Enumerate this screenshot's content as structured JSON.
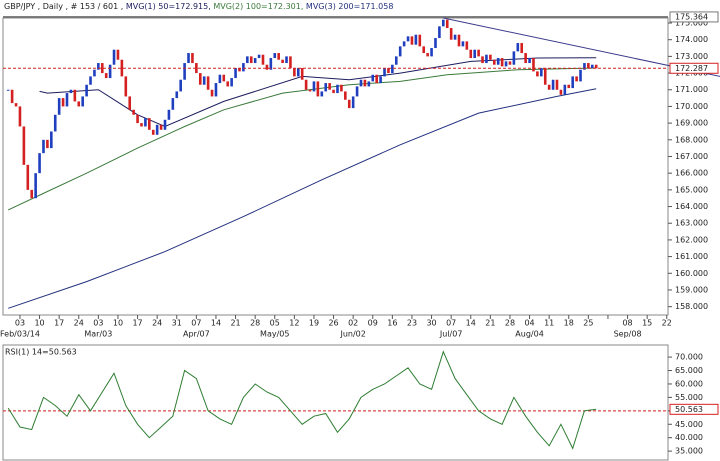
{
  "chart_data": [
    {
      "type": "candlestick",
      "title_parts": [
        "GBP/JPY , Daily , # 153 / 601 ,"
      ],
      "high": 175.364,
      "closes": [
        171.0,
        170.2,
        170.0,
        168.8,
        166.5,
        165.0,
        164.5,
        166.0,
        167.2,
        168.0,
        167.5,
        168.5,
        169.5,
        170.5,
        170.0,
        170.8,
        171.0,
        170.3,
        170.0,
        170.6,
        171.3,
        171.8,
        172.2,
        172.6,
        172.0,
        171.7,
        172.5,
        173.4,
        172.8,
        171.8,
        170.6,
        169.8,
        169.5,
        169.0,
        168.8,
        169.3,
        168.6,
        168.3,
        168.9,
        168.6,
        169.2,
        169.8,
        170.5,
        170.9,
        171.6,
        172.6,
        173.2,
        172.6,
        172.0,
        171.3,
        171.8,
        171.0,
        170.6,
        171.4,
        171.9,
        171.5,
        171.2,
        171.7,
        172.3,
        172.1,
        172.6,
        173.0,
        172.6,
        172.9,
        173.1,
        172.5,
        172.2,
        172.9,
        173.2,
        172.8,
        172.6,
        173.0,
        172.3,
        171.8,
        172.3,
        171.6,
        171.0,
        170.9,
        171.5,
        170.6,
        170.9,
        171.4,
        171.0,
        170.8,
        171.3,
        170.9,
        170.4,
        169.9,
        170.6,
        171.2,
        171.6,
        171.2,
        171.5,
        171.9,
        171.4,
        171.8,
        172.3,
        172.0,
        172.5,
        173.0,
        173.6,
        173.9,
        174.2,
        173.7,
        174.3,
        173.6,
        173.2,
        173.0,
        173.5,
        174.1,
        174.8,
        175.2,
        174.7,
        174.0,
        174.3,
        173.6,
        173.9,
        173.4,
        172.9,
        173.4,
        173.0,
        172.6,
        173.1,
        172.8,
        172.5,
        172.9,
        172.4,
        172.7,
        172.5,
        173.3,
        173.8,
        173.2,
        172.6,
        172.9,
        172.1,
        171.8,
        172.3,
        171.3,
        171.0,
        171.6,
        171.0,
        170.7,
        171.3,
        171.1,
        171.8,
        171.5,
        172.2,
        172.6,
        172.3,
        172.5,
        172.287
      ],
      "up_color": "#1f3fbf",
      "down_color": "#d42020",
      "series": [
        {
          "name": "MVG(1) 50=172.915,",
          "color": "#1c1c5e",
          "x": [
            8,
            10,
            23,
            33,
            40,
            55,
            75,
            87,
            100,
            118,
            135,
            150
          ],
          "values": [
            170.9,
            170.8,
            171.0,
            169.5,
            168.8,
            170.3,
            171.8,
            171.6,
            172.0,
            172.7,
            172.9,
            172.915
          ]
        },
        {
          "name": "MVG(2) 100=172.301,",
          "color": "#3b7a3b",
          "x": [
            0,
            10,
            20,
            33,
            45,
            55,
            70,
            87,
            100,
            112,
            130,
            150
          ],
          "values": [
            163.8,
            164.9,
            166.0,
            167.5,
            168.8,
            169.8,
            170.8,
            171.3,
            171.5,
            171.9,
            172.2,
            172.301
          ]
        },
        {
          "name": "MVG(3) 200=171.058",
          "color": "#22307e",
          "x": [
            0,
            20,
            40,
            60,
            80,
            100,
            120,
            140,
            150
          ],
          "values": [
            157.9,
            159.5,
            161.3,
            163.4,
            165.6,
            167.7,
            169.6,
            170.6,
            171.058
          ]
        }
      ],
      "trendline": {
        "color": "#3a3a8c",
        "x": [
          111,
          181.6
        ],
        "values": [
          175.3,
          171.8
        ]
      },
      "ylim": [
        157.5,
        175.3
      ],
      "yticks": [
        {
          "value": 158,
          "label": "158.000"
        },
        {
          "value": 159,
          "label": "159.000"
        },
        {
          "value": 160,
          "label": "160.000"
        },
        {
          "value": 161,
          "label": "161.000"
        },
        {
          "value": 162,
          "label": "162.000"
        },
        {
          "value": 163,
          "label": "163.000"
        },
        {
          "value": 164,
          "label": "164.000"
        },
        {
          "value": 165,
          "label": "165.000"
        },
        {
          "value": 166,
          "label": "166.000"
        },
        {
          "value": 167,
          "label": "167.000"
        },
        {
          "value": 168,
          "label": "168.000"
        },
        {
          "value": 169,
          "label": "169.000"
        },
        {
          "value": 170,
          "label": "170.000"
        },
        {
          "value": 171,
          "label": "171.000"
        },
        {
          "value": 172,
          "label": "172.000"
        },
        {
          "value": 173,
          "label": "173.000"
        },
        {
          "value": 174,
          "label": "174.000"
        },
        {
          "value": 175,
          "label": "175.000"
        }
      ],
      "week_labels": [
        "03",
        "10",
        "17",
        "24",
        "03",
        "10",
        "17",
        "24",
        "31",
        "07",
        "14",
        "21",
        "28",
        "05",
        "12",
        "19",
        "26",
        "02",
        "09",
        "16",
        "23",
        "30",
        "07",
        "14",
        "21",
        "28",
        "04",
        "11",
        "18",
        "25",
        null,
        "08",
        "15",
        "22"
      ],
      "month_labels": [
        "Feb/03/14",
        null,
        null,
        null,
        "Mar/03",
        null,
        null,
        null,
        null,
        "Apr/07",
        null,
        null,
        null,
        "May/05",
        null,
        null,
        null,
        "Jun/02",
        null,
        null,
        null,
        null,
        "Jul/07",
        null,
        null,
        null,
        "Aug/04",
        null,
        null,
        null,
        null,
        "Sep/08",
        null,
        null
      ]
    },
    {
      "type": "line",
      "title": "RSI(1) 14=50.563",
      "color": "#2e7d32",
      "level": 50,
      "x": [
        0,
        3,
        6,
        9,
        12,
        15,
        18,
        21,
        24,
        27,
        30,
        33,
        36,
        39,
        42,
        45,
        48,
        51,
        54,
        57,
        60,
        63,
        66,
        69,
        72,
        75,
        78,
        81,
        84,
        87,
        90,
        93,
        96,
        99,
        102,
        105,
        108,
        111,
        114,
        117,
        120,
        123,
        126,
        129,
        132,
        135,
        138,
        141,
        144,
        147,
        150
      ],
      "values": [
        51,
        44,
        43,
        55,
        52,
        48,
        56,
        50,
        57,
        64,
        52,
        45,
        40,
        44,
        48,
        65,
        62,
        50,
        47,
        45,
        55,
        60,
        57,
        55,
        50,
        45,
        48,
        49,
        42,
        47,
        55,
        58,
        60,
        63,
        66,
        60,
        58,
        72,
        62,
        56,
        50,
        47,
        45,
        55,
        48,
        42,
        37,
        45,
        36,
        50,
        50.563
      ],
      "ylim": [
        31.7,
        74.5
      ],
      "yticks": [
        {
          "value": 35,
          "label": "35.000"
        },
        {
          "value": 40,
          "label": "40.000"
        },
        {
          "value": 45,
          "label": "45.000"
        },
        {
          "value": 50,
          "label": "50.000"
        },
        {
          "value": 55,
          "label": "55.000"
        },
        {
          "value": 60,
          "label": "60.000"
        },
        {
          "value": 65,
          "label": "65.000"
        },
        {
          "value": 70,
          "label": "70.000"
        }
      ]
    }
  ]
}
